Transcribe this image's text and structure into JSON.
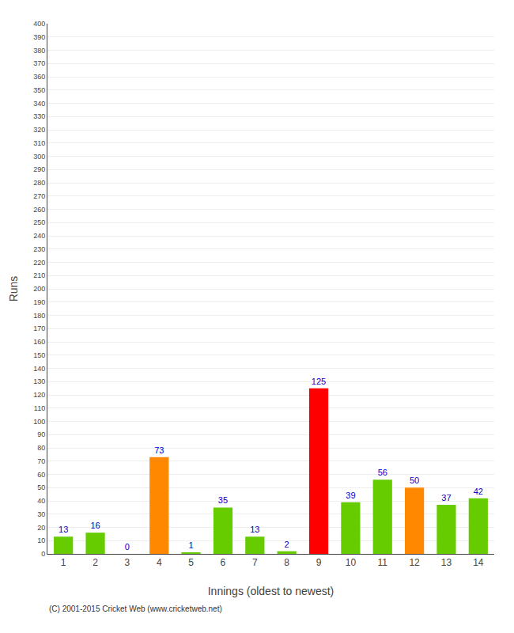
{
  "chart_data": {
    "type": "bar",
    "xlabel": "Innings (oldest to newest)",
    "ylabel": "Runs",
    "categories": [
      1,
      2,
      3,
      4,
      5,
      6,
      7,
      8,
      9,
      10,
      11,
      12,
      13,
      14
    ],
    "values": [
      13,
      16,
      0,
      73,
      1,
      35,
      13,
      2,
      125,
      39,
      56,
      50,
      37,
      42
    ],
    "colors": [
      "#66cc00",
      "#66cc00",
      "#66cc00",
      "#ff8800",
      "#66cc00",
      "#66cc00",
      "#66cc00",
      "#66cc00",
      "#ff0000",
      "#66cc00",
      "#66cc00",
      "#ff8800",
      "#66cc00",
      "#66cc00"
    ],
    "ylim": [
      0,
      400
    ],
    "yticks": [
      0,
      10,
      20,
      30,
      40,
      50,
      60,
      70,
      80,
      90,
      100,
      110,
      120,
      130,
      140,
      150,
      160,
      170,
      180,
      190,
      200,
      210,
      220,
      230,
      240,
      250,
      260,
      270,
      280,
      290,
      300,
      310,
      320,
      330,
      340,
      350,
      360,
      370,
      380,
      390,
      400
    ],
    "grid": true,
    "data_labels": true,
    "annotations": [
      "(C) 2001-2015 Cricket Web (www.cricketweb.net)"
    ]
  }
}
